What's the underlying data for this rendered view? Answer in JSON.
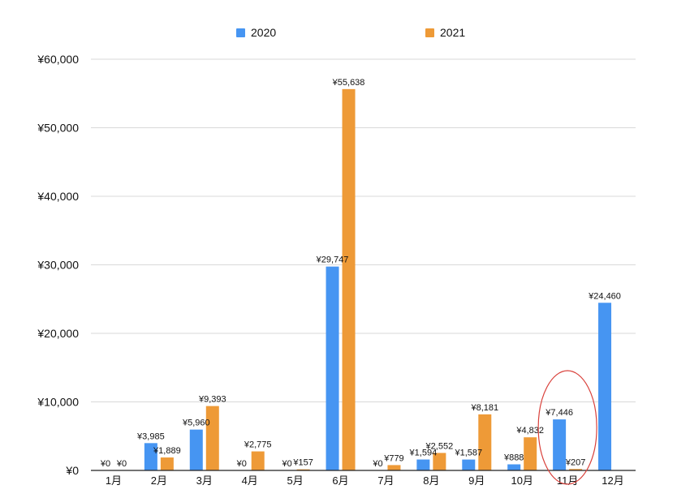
{
  "colors": {
    "series_2020": "#4695f2",
    "series_2021": "#ee9a37",
    "grid": "#d9d9d9",
    "axis": "#222222",
    "highlight": "#d9403a"
  },
  "legend": {
    "items": [
      {
        "label": "2020",
        "color": "#4695f2"
      },
      {
        "label": "2021",
        "color": "#ee9a37"
      }
    ]
  },
  "chart_data": {
    "type": "bar",
    "title": "",
    "xlabel": "",
    "ylabel": "",
    "legend_position": "top",
    "grid": true,
    "ylim": [
      0,
      60000
    ],
    "yticks": [
      0,
      10000,
      20000,
      30000,
      40000,
      50000,
      60000
    ],
    "ytick_labels": [
      "¥0",
      "¥10,000",
      "¥20,000",
      "¥30,000",
      "¥40,000",
      "¥50,000",
      "¥60,000"
    ],
    "categories": [
      "1月",
      "2月",
      "3月",
      "4月",
      "5月",
      "6月",
      "7月",
      "8月",
      "9月",
      "10月",
      "11月",
      "12月"
    ],
    "series": [
      {
        "name": "2020",
        "color": "#4695f2",
        "values": [
          0,
          3985,
          5960,
          0,
          0,
          29747,
          0,
          1594,
          1587,
          888,
          7446,
          24460
        ],
        "labels": [
          "¥0",
          "¥3,985",
          "¥5,960",
          "¥0",
          "¥0",
          "¥29,747",
          "¥0",
          "¥1,594",
          "¥1,587",
          "¥888",
          "¥7,446",
          "¥24,460"
        ]
      },
      {
        "name": "2021",
        "color": "#ee9a37",
        "values": [
          0,
          1889,
          9393,
          2775,
          157,
          55638,
          779,
          2552,
          8181,
          4832,
          207,
          null
        ],
        "labels": [
          "¥0",
          "¥1,889",
          "¥9,393",
          "¥2,775",
          "¥157",
          "¥55,638",
          "¥779",
          "¥2,552",
          "¥8,181",
          "¥4,832",
          "¥207",
          ""
        ]
      }
    ],
    "annotation": {
      "type": "ellipse",
      "category": "11月",
      "description": "highlighted month"
    }
  }
}
